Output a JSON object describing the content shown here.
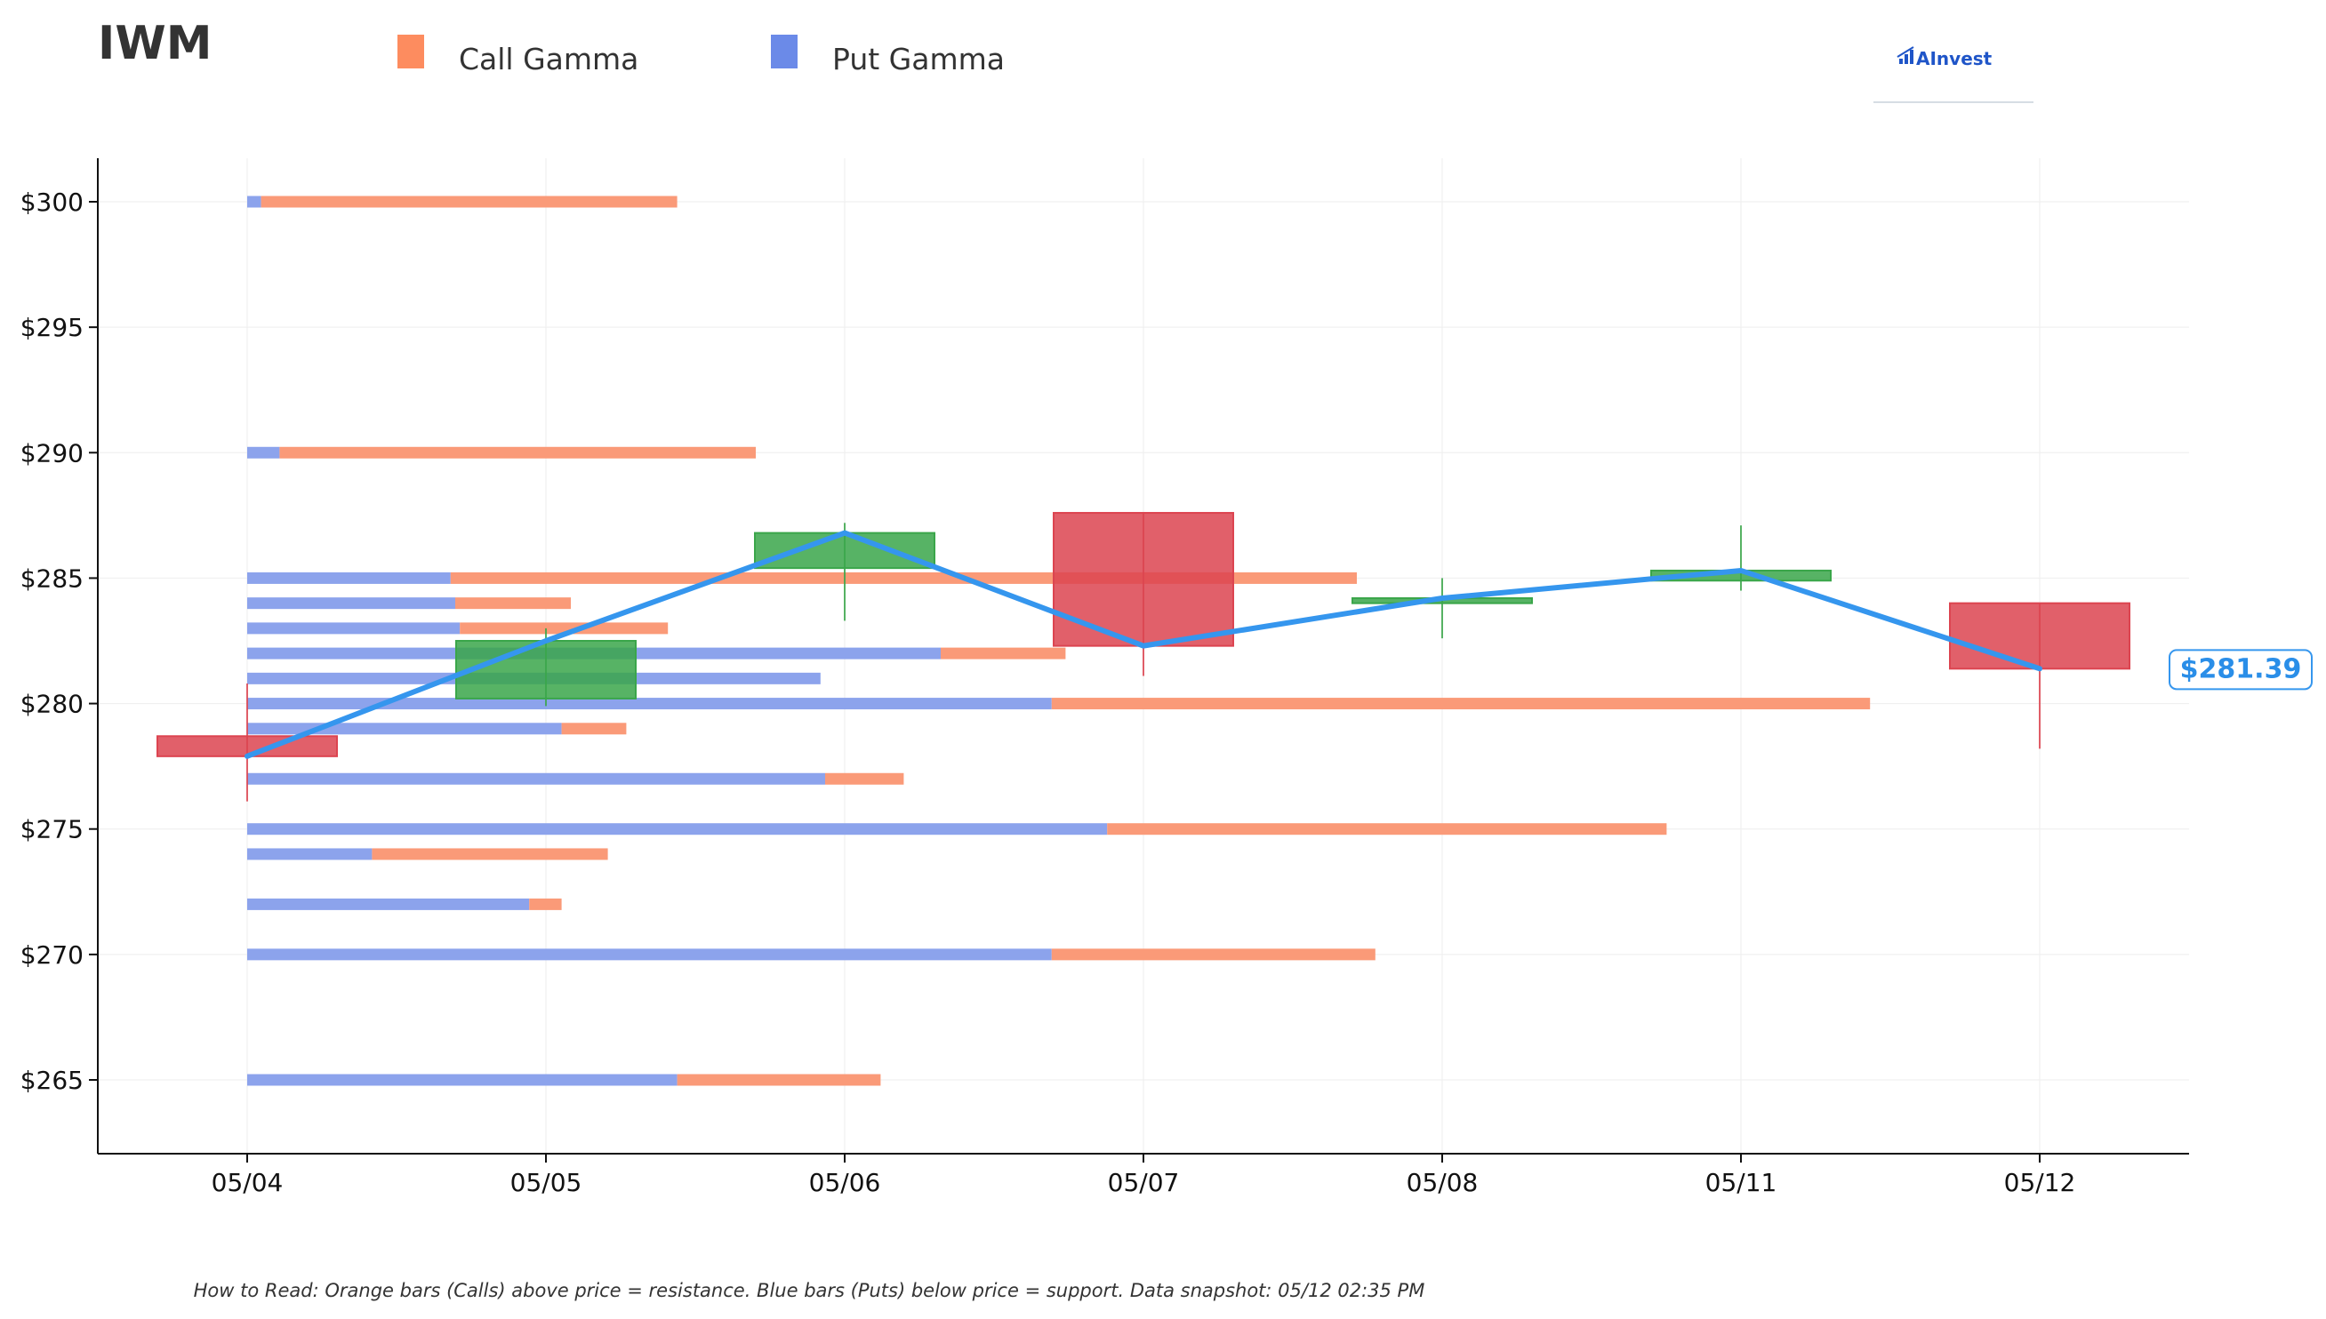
{
  "header": {
    "ticker": "IWM",
    "brand": "AInvest"
  },
  "legend": [
    {
      "label": "Call Gamma",
      "color": "#fd8c5f"
    },
    {
      "label": "Put Gamma",
      "color": "#6b8ae8"
    }
  ],
  "colors": {
    "call": "#fa9a78",
    "put": "#8ca3ec",
    "up": "#3aa64a",
    "down": "#dc4450",
    "price_line": "#3596ee",
    "grid": "#eeeeee"
  },
  "footnote": "How to Read: Orange bars (Calls) above price = resistance. Blue bars (Puts) below price = support. Data snapshot: 05/12 02:35 PM",
  "chart_data": {
    "type": "candlestick_with_gamma_bars",
    "ylim": [
      262,
      302
    ],
    "yticks": [
      265,
      270,
      275,
      280,
      285,
      290,
      295,
      300
    ],
    "ytick_labels": [
      "$265",
      "$270",
      "$275",
      "$280",
      "$285",
      "$290",
      "$295",
      "$300"
    ],
    "x_labels": [
      "05/04",
      "05/05",
      "05/06",
      "05/07",
      "05/08",
      "05/11",
      "05/12"
    ],
    "candles": [
      {
        "date": "05/04",
        "open": 278.7,
        "close": 277.9,
        "high": 280.8,
        "low": 276.1
      },
      {
        "date": "05/05",
        "open": 280.2,
        "close": 282.5,
        "high": 283.0,
        "low": 279.9
      },
      {
        "date": "05/06",
        "open": 285.4,
        "close": 286.8,
        "high": 287.2,
        "low": 283.3
      },
      {
        "date": "05/07",
        "open": 287.6,
        "close": 282.3,
        "high": 287.6,
        "low": 281.1
      },
      {
        "date": "05/08",
        "open": 284.0,
        "close": 284.2,
        "high": 285.0,
        "low": 282.6
      },
      {
        "date": "05/11",
        "open": 284.9,
        "close": 285.3,
        "high": 287.1,
        "low": 284.5
      },
      {
        "date": "05/12",
        "open": 284.0,
        "close": 281.39,
        "high": 284.0,
        "low": 278.2
      }
    ],
    "price_line": [
      277.9,
      282.5,
      286.8,
      282.3,
      284.2,
      285.3,
      281.39
    ],
    "current_price_label": "$281.39",
    "gamma_bars": [
      {
        "strike": 300,
        "put": 0.03,
        "call": 0.9
      },
      {
        "strike": 290,
        "put": 0.07,
        "call": 1.03
      },
      {
        "strike": 285,
        "put": 0.44,
        "call": 1.96
      },
      {
        "strike": 284,
        "put": 0.45,
        "call": 0.25
      },
      {
        "strike": 283,
        "put": 0.46,
        "call": 0.45
      },
      {
        "strike": 282,
        "put": 1.5,
        "call": 0.27
      },
      {
        "strike": 281,
        "put": 1.24,
        "call": 0.0
      },
      {
        "strike": 280,
        "put": 1.74,
        "call": 1.77
      },
      {
        "strike": 279,
        "put": 0.68,
        "call": 0.14
      },
      {
        "strike": 277,
        "put": 1.25,
        "call": 0.17
      },
      {
        "strike": 275,
        "put": 1.86,
        "call": 1.21
      },
      {
        "strike": 274,
        "put": 0.27,
        "call": 0.51
      },
      {
        "strike": 272,
        "put": 0.61,
        "call": 0.07
      },
      {
        "strike": 270,
        "put": 1.74,
        "call": 0.7
      },
      {
        "strike": 265,
        "put": 0.93,
        "call": 0.44
      }
    ]
  }
}
